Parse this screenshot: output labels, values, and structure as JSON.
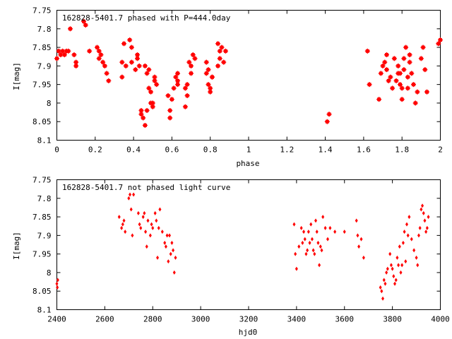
{
  "chart_data": [
    {
      "type": "scatter",
      "title": "162828-5401.7 phased with P=444.0day",
      "xlabel": "phase",
      "ylabel": "I[mag]",
      "xlim": [
        0,
        2
      ],
      "ylim": [
        7.75,
        8.1
      ],
      "y_inverted": true,
      "xticks": [
        "0",
        "0.2",
        "0.4",
        "0.6",
        "0.8",
        "1",
        "1.2",
        "1.4",
        "1.6",
        "1.8",
        "2"
      ],
      "yticks": [
        "7.75",
        "7.8",
        "7.85",
        "7.9",
        "7.95",
        "8",
        "8.05",
        "8.1"
      ],
      "marker_color": "#ff0000",
      "marker": "star",
      "grid": false,
      "series": [
        {
          "x": [
            0.0,
            0.01,
            0.02,
            0.03,
            0.04,
            0.05,
            0.06,
            0.07,
            0.09,
            0.1,
            0.1,
            0.14,
            0.15,
            0.17,
            0.21,
            0.22,
            0.22,
            0.23,
            0.24,
            0.25,
            0.26,
            0.27,
            0.34,
            0.34,
            0.35,
            0.36,
            0.38,
            0.39,
            0.39,
            0.41,
            0.42,
            0.42,
            0.43,
            0.44,
            0.44,
            0.45,
            0.46,
            0.46,
            0.47,
            0.47,
            0.48,
            0.48,
            0.49,
            0.49,
            0.5,
            0.5,
            0.51,
            0.51,
            0.52,
            0.58,
            0.59,
            0.59,
            0.6,
            0.61,
            0.62,
            0.63,
            0.63,
            0.63,
            0.67,
            0.67,
            0.68,
            0.68,
            0.69,
            0.7,
            0.7,
            0.71,
            0.72,
            0.78,
            0.78,
            0.79,
            0.79,
            0.8,
            0.8,
            0.81,
            0.81,
            0.84,
            0.84,
            0.85,
            0.85,
            0.86,
            0.87,
            0.88,
            1.41,
            1.42,
            1.62,
            1.63,
            1.68,
            1.69,
            1.7,
            1.71,
            1.72,
            1.72,
            1.73,
            1.74,
            1.75,
            1.76,
            1.77,
            1.78,
            1.78,
            1.79,
            1.79,
            1.8,
            1.8,
            1.81,
            1.81,
            1.82,
            1.83,
            1.83,
            1.84,
            1.84,
            1.85,
            1.86,
            1.87,
            1.88,
            1.9,
            1.91,
            1.92,
            1.93,
            1.99,
            2.0
          ],
          "y": [
            7.88,
            7.86,
            7.87,
            7.86,
            7.87,
            7.86,
            7.86,
            7.8,
            7.87,
            7.9,
            7.89,
            7.78,
            7.79,
            7.86,
            7.85,
            7.86,
            7.88,
            7.87,
            7.89,
            7.9,
            7.92,
            7.94,
            7.89,
            7.93,
            7.84,
            7.9,
            7.83,
            7.85,
            7.89,
            7.91,
            7.87,
            7.88,
            7.9,
            8.03,
            8.02,
            8.04,
            8.06,
            7.9,
            8.02,
            7.92,
            7.91,
            7.96,
            7.97,
            8.0,
            8.01,
            8.0,
            7.94,
            7.93,
            7.95,
            7.98,
            8.02,
            8.04,
            7.99,
            7.96,
            7.93,
            7.95,
            7.92,
            7.94,
            8.01,
            7.96,
            7.98,
            7.95,
            7.89,
            7.9,
            7.92,
            7.87,
            7.88,
            7.89,
            7.92,
            7.91,
            7.95,
            7.97,
            7.96,
            7.93,
            7.93,
            7.9,
            7.84,
            7.86,
            7.88,
            7.85,
            7.89,
            7.86,
            8.05,
            8.03,
            7.86,
            7.95,
            7.99,
            7.92,
            7.9,
            7.89,
            7.87,
            7.91,
            7.94,
            7.93,
            7.96,
            7.88,
            7.94,
            7.9,
            7.92,
            7.92,
            7.95,
            7.99,
            7.96,
            7.91,
            7.88,
            7.85,
            7.96,
            7.93,
            7.87,
            7.89,
            7.92,
            7.95,
            8.0,
            7.97,
            7.88,
            7.85,
            7.91,
            7.97,
            7.84,
            7.83
          ]
        }
      ]
    },
    {
      "type": "scatter",
      "title": "162828-5401.7 not phased light curve",
      "xlabel": "hjd0",
      "ylabel": "I[mag]",
      "xlim": [
        2400,
        4000
      ],
      "ylim": [
        7.75,
        8.1
      ],
      "y_inverted": true,
      "xticks": [
        "2400",
        "2600",
        "2800",
        "3000",
        "3200",
        "3400",
        "3600",
        "3800",
        "4000"
      ],
      "yticks": [
        "7.75",
        "7.8",
        "7.85",
        "7.9",
        "7.95",
        "8",
        "8.05",
        "8.1"
      ],
      "marker_color": "#ff0000",
      "marker": "diamond",
      "grid": false,
      "series": [
        {
          "x": [
            2400,
            2402,
            2404,
            2660,
            2670,
            2675,
            2680,
            2685,
            2700,
            2705,
            2710,
            2715,
            2720,
            2740,
            2745,
            2750,
            2760,
            2765,
            2770,
            2775,
            2780,
            2790,
            2795,
            2800,
            2810,
            2815,
            2820,
            2825,
            2830,
            2840,
            2850,
            2855,
            2860,
            2865,
            2870,
            2875,
            2880,
            2885,
            2890,
            2895,
            3390,
            3395,
            3400,
            3410,
            3420,
            3425,
            3430,
            3435,
            3440,
            3445,
            3450,
            3455,
            3460,
            3465,
            3470,
            3475,
            3480,
            3485,
            3490,
            3495,
            3500,
            3505,
            3510,
            3520,
            3530,
            3540,
            3560,
            3600,
            3650,
            3655,
            3660,
            3670,
            3680,
            3750,
            3755,
            3760,
            3765,
            3770,
            3775,
            3780,
            3790,
            3795,
            3800,
            3805,
            3810,
            3815,
            3820,
            3825,
            3830,
            3835,
            3840,
            3845,
            3850,
            3855,
            3860,
            3865,
            3870,
            3880,
            3890,
            3900,
            3905,
            3910,
            3915,
            3920,
            3925,
            3930,
            3935,
            3940,
            3945,
            3950
          ],
          "y": [
            8.03,
            8.04,
            8.02,
            7.85,
            7.88,
            7.87,
            7.86,
            7.89,
            7.8,
            7.79,
            7.83,
            7.9,
            7.79,
            7.84,
            7.87,
            7.88,
            7.85,
            7.84,
            7.89,
            7.93,
            7.86,
            7.9,
            7.87,
            7.88,
            7.84,
            7.86,
            7.96,
            7.88,
            7.83,
            7.89,
            7.92,
            7.93,
            7.9,
            7.97,
            7.9,
            7.95,
            7.92,
            7.94,
            8.0,
            7.96,
            7.87,
            7.95,
            7.99,
            7.93,
            7.88,
            7.92,
            7.89,
            7.91,
            7.95,
            7.94,
            7.89,
            7.92,
            7.87,
            7.91,
            7.94,
            7.95,
            7.86,
            7.89,
            7.92,
            7.98,
            7.93,
            7.94,
            7.85,
            7.88,
            7.91,
            7.88,
            7.89,
            7.89,
            7.86,
            7.9,
            7.93,
            7.91,
            7.96,
            8.04,
            8.05,
            8.07,
            8.02,
            8.03,
            8.0,
            7.99,
            7.95,
            7.98,
            7.99,
            8.01,
            8.03,
            8.02,
            7.96,
            7.98,
            7.93,
            8.0,
            7.98,
            7.92,
            7.89,
            7.97,
            7.87,
            7.9,
            7.85,
            7.91,
            7.94,
            7.96,
            7.98,
            7.9,
            7.88,
            7.83,
            7.82,
            7.84,
            7.86,
            7.89,
            7.88,
            7.85
          ]
        }
      ]
    }
  ]
}
